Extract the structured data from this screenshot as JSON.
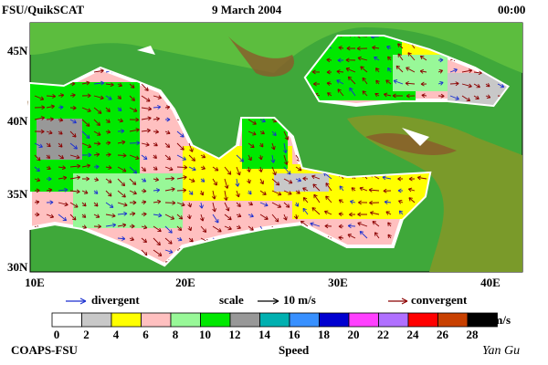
{
  "header": {
    "left": "FSU/QuikSCAT",
    "center": "9 March 2004",
    "right": "00:00"
  },
  "map": {
    "lat_labels": [
      "45N",
      "40N",
      "35N",
      "30N"
    ],
    "lon_labels": [
      "10E",
      "20E",
      "30E",
      "40E"
    ]
  },
  "legend": {
    "divergent": "divergent",
    "scale": "scale",
    "scale_value": "10 m/s",
    "convergent": "convergent",
    "divergent_color": "#1a2fd0",
    "convergent_color": "#8b0000"
  },
  "colorbar": {
    "ticks": [
      0,
      2,
      4,
      6,
      8,
      10,
      12,
      14,
      16,
      18,
      20,
      22,
      24,
      26,
      28
    ],
    "unit": "m/s",
    "title": "Speed",
    "colors": [
      "#ffffff",
      "#c8c8c8",
      "#ffff00",
      "#ffc0c0",
      "#98f898",
      "#00e800",
      "#989898",
      "#00b0b0",
      "#3890ff",
      "#0000d0",
      "#ff40ff",
      "#b070ff",
      "#ff0000",
      "#c84000",
      "#000000"
    ]
  },
  "footer": {
    "left": "COAPS-FSU",
    "right": "Yan Gu"
  }
}
